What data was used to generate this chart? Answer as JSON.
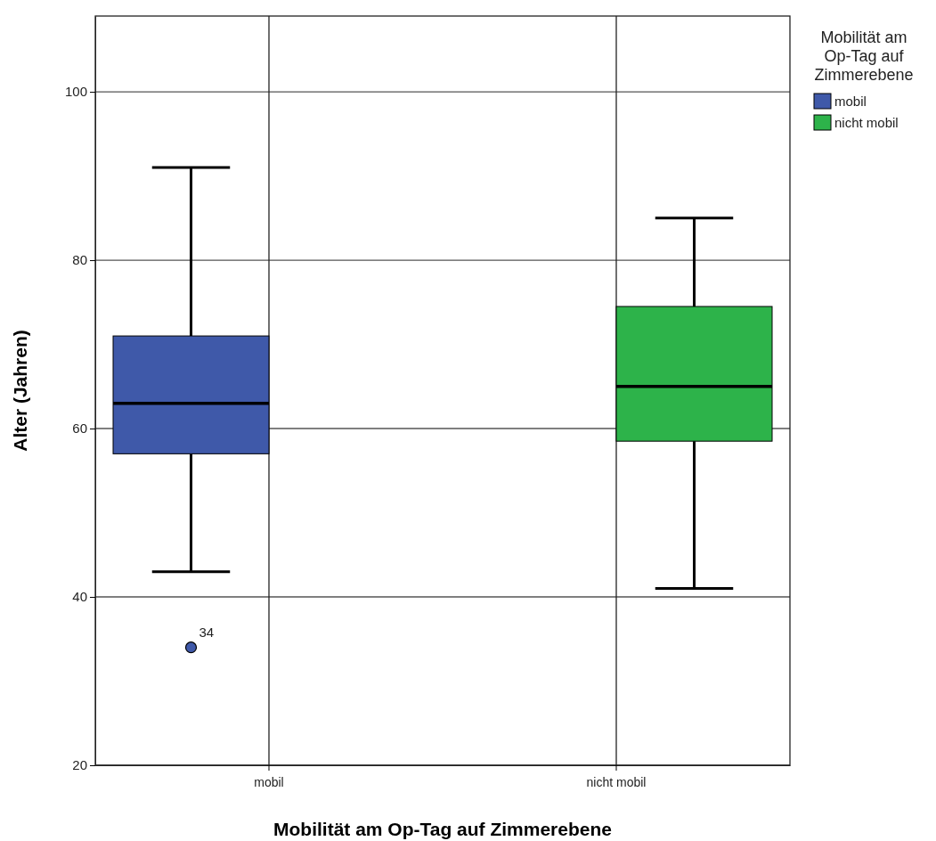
{
  "chart_data": {
    "type": "box",
    "xlabel": "Mobilität am Op-Tag auf Zimmerebene",
    "ylabel": "Alter (Jahren)",
    "legend_title": "Mobilität am Op-Tag auf Zimmerebene",
    "categories": [
      "mobil",
      "nicht mobil"
    ],
    "series": [
      {
        "name": "mobil",
        "color": "#3f59a9",
        "boxes": [
          {
            "low": 43,
            "q1": 57,
            "median": 63,
            "q3": 71,
            "high": 91,
            "outliers": [
              34
            ]
          },
          null
        ]
      },
      {
        "name": "nicht mobil",
        "color": "#2db34a",
        "boxes": [
          null,
          {
            "low": 41,
            "q1": 58.5,
            "median": 65,
            "q3": 74.5,
            "high": 85
          }
        ]
      }
    ],
    "annotations": [
      "34"
    ],
    "ylim": [
      20,
      109
    ],
    "yticks": [
      20,
      40,
      60,
      80,
      100
    ],
    "grid": true,
    "legend": "top right"
  }
}
